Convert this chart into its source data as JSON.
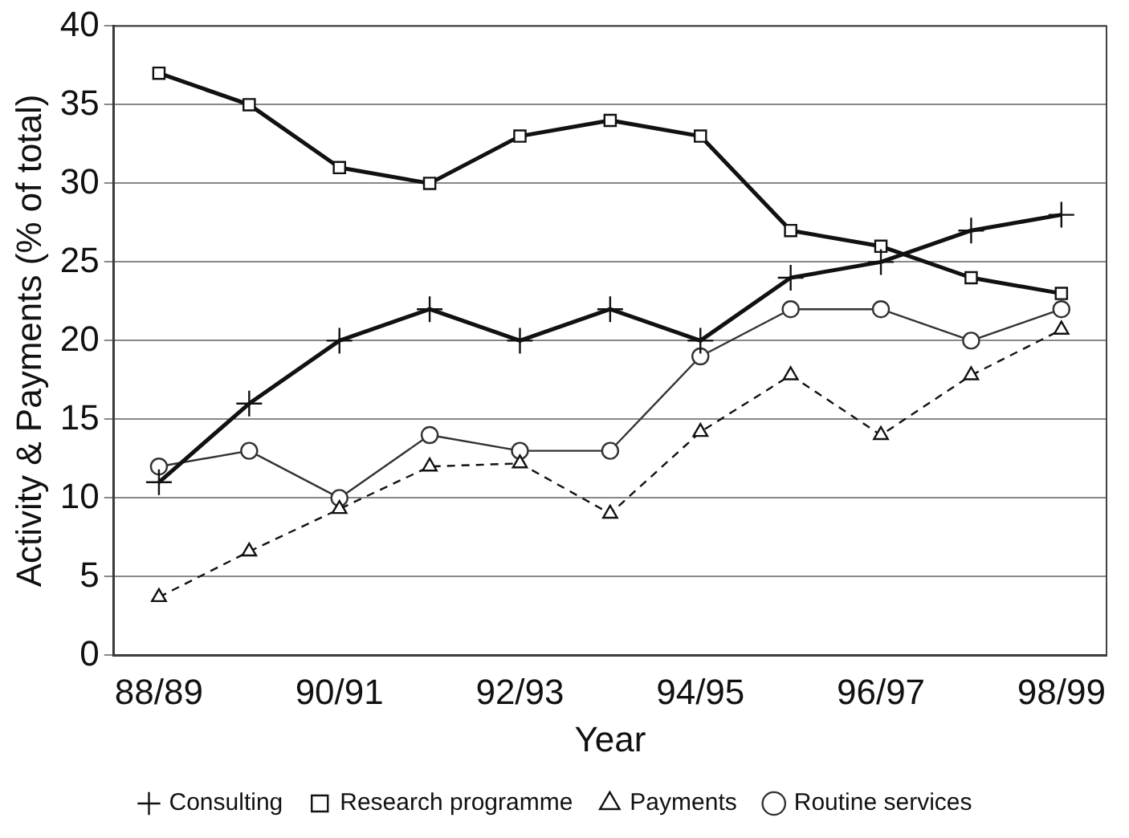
{
  "chart_data": {
    "type": "line",
    "xlabel": "Year",
    "ylabel": "Activity & Payments (% of total)",
    "categories": [
      "88/89",
      null,
      "90/91",
      null,
      "92/93",
      null,
      "94/95",
      null,
      "96/97",
      null,
      "98/99"
    ],
    "ylim": [
      0,
      40
    ],
    "yticks": [
      0,
      5,
      10,
      15,
      20,
      25,
      30,
      35,
      40
    ],
    "grid": "y",
    "legend": "bottom",
    "series": [
      {
        "name": "Consulting",
        "color": "#111111",
        "marker": "cross",
        "line_style": "solid",
        "values": [
          11,
          16,
          20,
          22,
          20,
          22,
          20,
          24,
          25,
          27,
          28
        ]
      },
      {
        "name": "Research programme",
        "color": "#111111",
        "marker": "square",
        "line_style": "solid",
        "values": [
          37,
          35,
          31,
          30,
          33,
          34,
          33,
          27,
          26,
          24,
          23
        ]
      },
      {
        "name": "Payments",
        "color": "#111111",
        "marker": "triangle",
        "line_style": "dashed",
        "values": [
          3.7,
          6.6,
          9.3,
          12,
          12.2,
          9,
          14.2,
          17.8,
          14,
          17.8,
          20.7
        ]
      },
      {
        "name": "Routine services",
        "color": "#333333",
        "marker": "circle",
        "line_style": "solid",
        "values": [
          12,
          13,
          10,
          14,
          13,
          13,
          19,
          22,
          22,
          20,
          22
        ]
      }
    ]
  }
}
